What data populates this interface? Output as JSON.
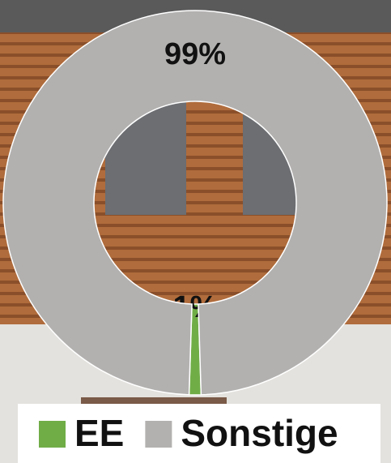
{
  "chart_data": {
    "type": "donut",
    "categories": [
      "EE",
      "Sonstige"
    ],
    "values": [
      1,
      99
    ],
    "value_labels": [
      "1%",
      "99%"
    ],
    "colors": [
      "#70ad47",
      "#b3b1b0"
    ],
    "legend": "bottom"
  }
}
